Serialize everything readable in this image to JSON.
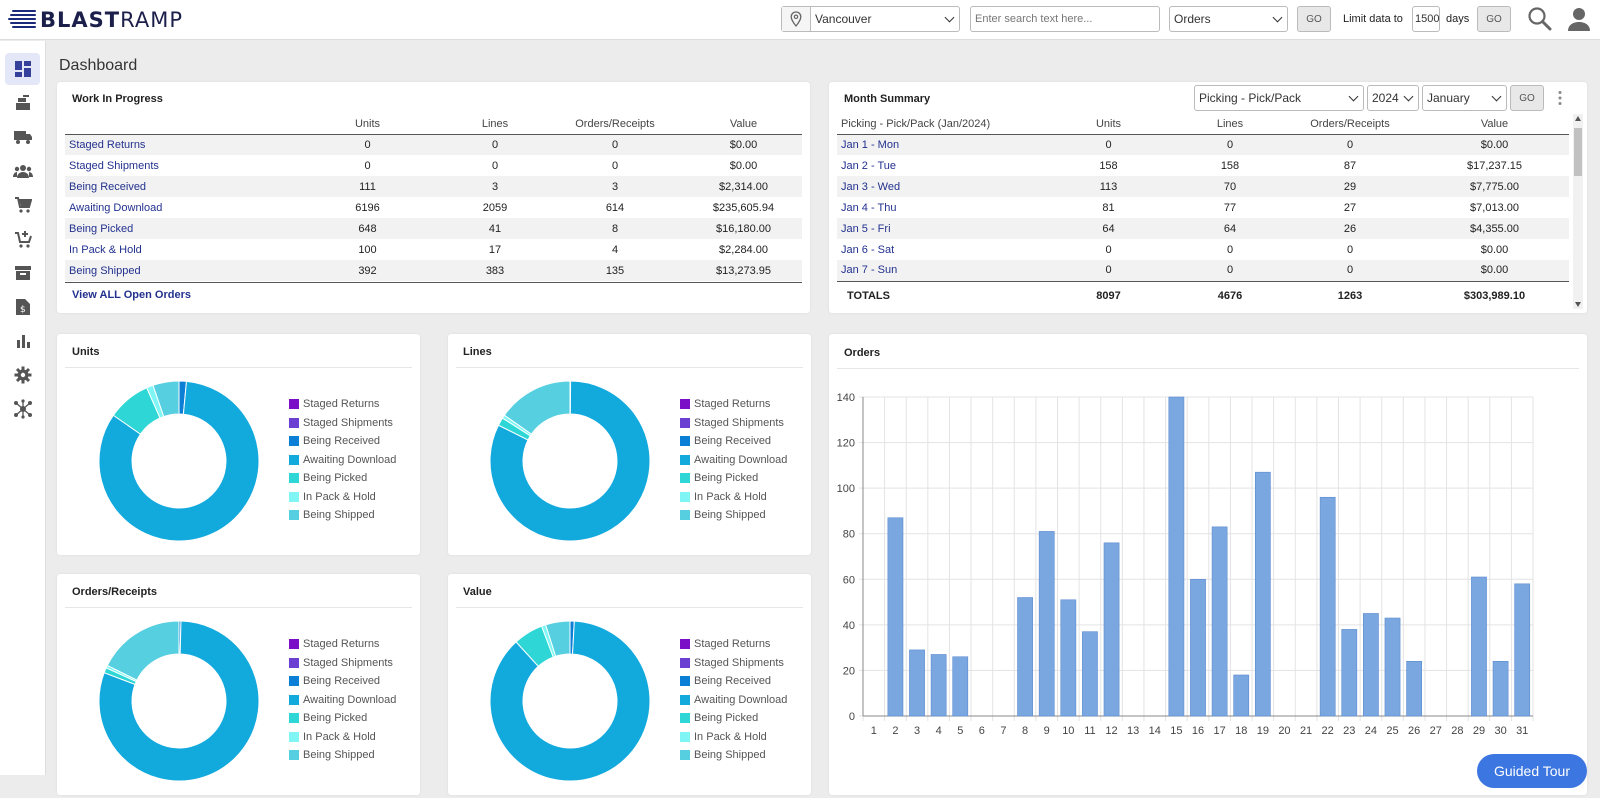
{
  "app": {
    "brand_part1": "BLAST",
    "brand_part2": "RAMP"
  },
  "header": {
    "location_value": "Vancouver",
    "search_placeholder": "Enter search text here...",
    "search_type_value": "Orders",
    "go_label": "GO",
    "limit_label": "Limit data to",
    "limit_days_value": "1500",
    "days_label": "days",
    "go2_label": "GO"
  },
  "sidebar": {
    "items": [
      "dashboard-icon",
      "receiving-icon",
      "shipping-truck-icon",
      "customers-icon",
      "cart-icon",
      "cart-add-icon",
      "archive-icon",
      "invoice-icon",
      "reports-chart-icon",
      "settings-gear-icon",
      "integrations-hub-icon"
    ]
  },
  "page": {
    "title": "Dashboard"
  },
  "wip": {
    "title": "Work In Progress",
    "columns": [
      "",
      "Units",
      "Lines",
      "Orders/Receipts",
      "Value"
    ],
    "rows": [
      [
        "Staged Returns",
        "0",
        "0",
        "0",
        "$0.00"
      ],
      [
        "Staged Shipments",
        "0",
        "0",
        "0",
        "$0.00"
      ],
      [
        "Being Received",
        "111",
        "3",
        "3",
        "$2,314.00"
      ],
      [
        "Awaiting Download",
        "6196",
        "2059",
        "614",
        "$235,605.94"
      ],
      [
        "Being Picked",
        "648",
        "41",
        "8",
        "$16,180.00"
      ],
      [
        "In Pack & Hold",
        "100",
        "17",
        "4",
        "$2,284.00"
      ],
      [
        "Being Shipped",
        "392",
        "383",
        "135",
        "$13,273.95"
      ]
    ],
    "view_all": "View ALL Open Orders"
  },
  "month": {
    "title": "Month Summary",
    "type_value": "Picking - Pick/Pack",
    "year_value": "2024",
    "month_value": "January",
    "go_label": "GO",
    "columns": [
      "Picking - Pick/Pack (Jan/2024)",
      "Units",
      "Lines",
      "Orders/Receipts",
      "Value"
    ],
    "rows": [
      [
        "Jan 1 - Mon",
        "0",
        "0",
        "0",
        "$0.00"
      ],
      [
        "Jan 2 - Tue",
        "158",
        "158",
        "87",
        "$17,237.15"
      ],
      [
        "Jan 3 - Wed",
        "113",
        "70",
        "29",
        "$7,775.00"
      ],
      [
        "Jan 4 - Thu",
        "81",
        "77",
        "27",
        "$7,013.00"
      ],
      [
        "Jan 5 - Fri",
        "64",
        "64",
        "26",
        "$4,355.00"
      ],
      [
        "Jan 6 - Sat",
        "0",
        "0",
        "0",
        "$0.00"
      ],
      [
        "Jan 7 - Sun",
        "0",
        "0",
        "0",
        "$0.00"
      ]
    ],
    "totals": [
      "TOTALS",
      "8097",
      "4676",
      "1263",
      "$303,989.10"
    ]
  },
  "legend_labels": [
    "Staged Returns",
    "Staged Shipments",
    "Being Received",
    "Awaiting Download",
    "Being Picked",
    "In Pack & Hold",
    "Being Shipped"
  ],
  "legend_colors": [
    "#7b0fc7",
    "#6a3fd1",
    "#0b7fd6",
    "#12a9dd",
    "#2fd6d6",
    "#7ff5f5",
    "#56cfe0"
  ],
  "donuts": {
    "units": {
      "title": "Units",
      "values": [
        0,
        0,
        111,
        6196,
        648,
        100,
        392
      ]
    },
    "lines": {
      "title": "Lines",
      "values": [
        0,
        0,
        3,
        2059,
        41,
        17,
        383
      ]
    },
    "orders": {
      "title": "Orders/Receipts",
      "values": [
        0,
        0,
        3,
        614,
        8,
        4,
        135
      ]
    },
    "value": {
      "title": "Value",
      "values": [
        0,
        0,
        2314.0,
        235605.94,
        16180.0,
        2284.0,
        13273.95
      ]
    }
  },
  "orders_chart": {
    "title": "Orders"
  },
  "chart_data": {
    "type": "bar",
    "categories": [
      "1",
      "2",
      "3",
      "4",
      "5",
      "6",
      "7",
      "8",
      "9",
      "10",
      "11",
      "12",
      "13",
      "14",
      "15",
      "16",
      "17",
      "18",
      "19",
      "20",
      "21",
      "22",
      "23",
      "24",
      "25",
      "26",
      "27",
      "28",
      "29",
      "30",
      "31"
    ],
    "values": [
      0,
      87,
      29,
      27,
      26,
      0,
      0,
      52,
      81,
      51,
      37,
      76,
      0,
      0,
      140,
      60,
      83,
      18,
      107,
      0,
      0,
      96,
      38,
      45,
      43,
      24,
      0,
      0,
      61,
      24,
      58
    ],
    "ylim": [
      0,
      140
    ],
    "yticks": [
      0,
      20,
      40,
      60,
      80,
      100,
      120,
      140
    ],
    "grid": true,
    "color": "#7ba7e0"
  },
  "guided_tour": "Guided Tour"
}
